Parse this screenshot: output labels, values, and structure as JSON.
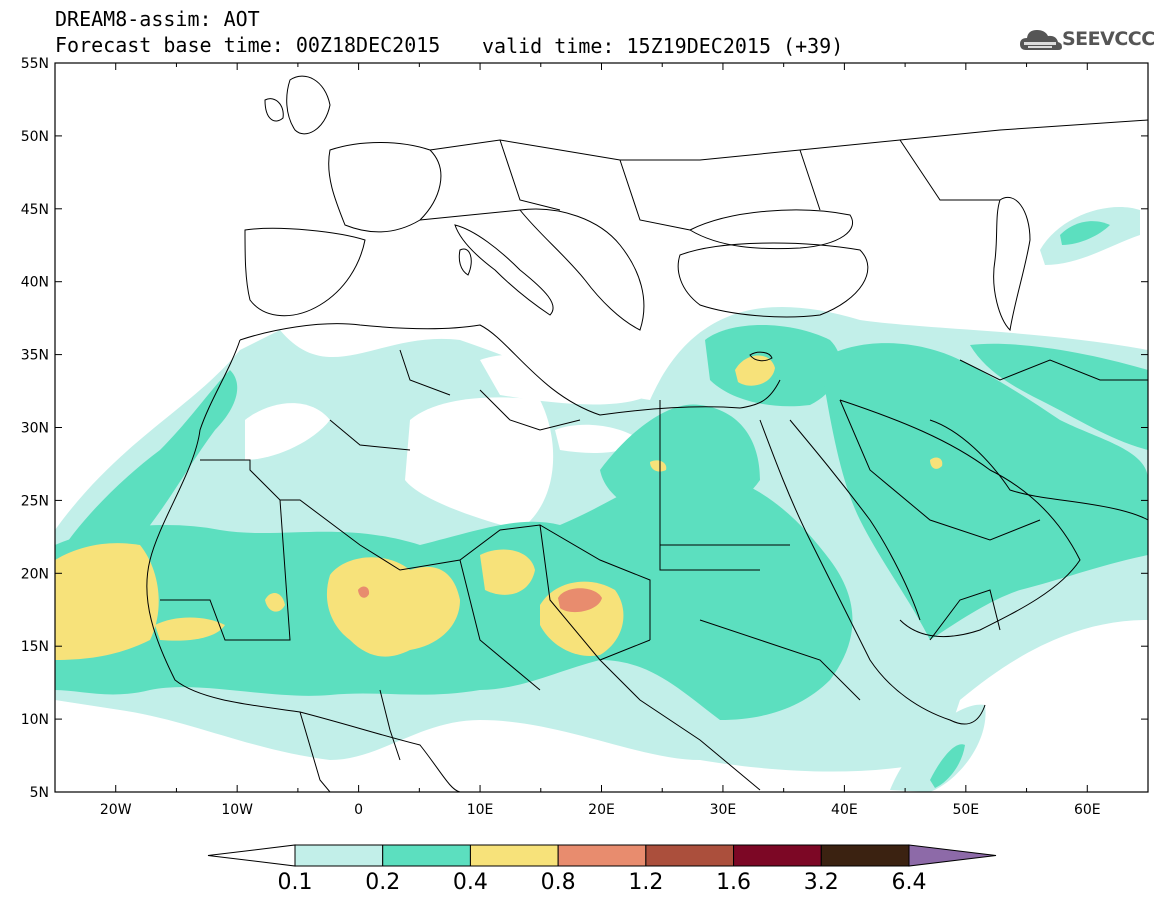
{
  "header": {
    "title": "DREAM8-assim: AOT",
    "base_time_label": "Forecast base time: 00Z18DEC2015",
    "valid_time_label": "valid time: 15Z19DEC2015 (+39)"
  },
  "logo": {
    "text": "SEEVCCC",
    "icon": "cloud-logo-icon"
  },
  "map": {
    "lon_range": [
      -25,
      65
    ],
    "lat_range": [
      5,
      55
    ],
    "lat_ticks": [
      "5N",
      "10N",
      "15N",
      "20N",
      "25N",
      "30N",
      "35N",
      "40N",
      "45N",
      "50N",
      "55N"
    ],
    "lon_ticks": [
      "20W",
      "10W",
      "0",
      "10E",
      "20E",
      "30E",
      "40E",
      "50E",
      "60E"
    ]
  },
  "colorbar": {
    "labels": [
      "0.1",
      "0.2",
      "0.4",
      "0.8",
      "1.2",
      "1.6",
      "3.2",
      "6.4"
    ],
    "colors": [
      "#ffffff",
      "#c2efe9",
      "#5cdfbf",
      "#f7e27a",
      "#e88c6e",
      "#ab4f3c",
      "#7c0725",
      "#3b2211",
      "#8d6aa8"
    ]
  },
  "palette": {
    "light_cyan": "#c2efe9",
    "green": "#5cdfbf",
    "yellow": "#f7e27a",
    "orange": "#e88c6e"
  }
}
